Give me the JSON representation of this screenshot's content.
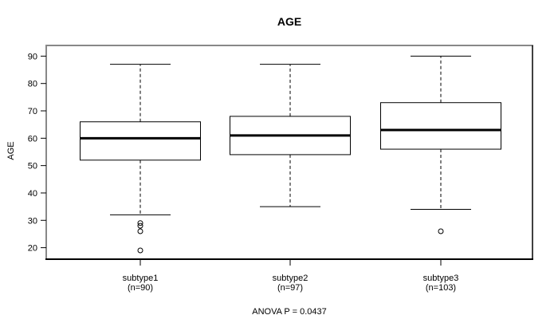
{
  "colors": {
    "ink": "#000000",
    "frame_gray": "#888888",
    "background": "#ffffff",
    "box_fill": "#ffffff"
  },
  "chart_data": {
    "type": "boxplot",
    "title": "AGE",
    "ylabel": "AGE",
    "xlabel": "",
    "annotation": "ANOVA P = 0.0437",
    "ylim": [
      15.8,
      93.9
    ],
    "yticks": [
      20,
      30,
      40,
      50,
      60,
      70,
      80,
      90
    ],
    "grid": false,
    "legend": false,
    "categories": [
      "subtype1",
      "subtype2",
      "subtype3"
    ],
    "groups": [
      {
        "label": "subtype1",
        "n_label": "(n=90)",
        "n": 90,
        "whisker_low": 32,
        "q1": 52,
        "median": 60,
        "q3": 66,
        "whisker_high": 87,
        "outliers": [
          29,
          28,
          26,
          19
        ]
      },
      {
        "label": "subtype2",
        "n_label": "(n=97)",
        "n": 97,
        "whisker_low": 35,
        "q1": 54,
        "median": 61,
        "q3": 68,
        "whisker_high": 87,
        "outliers": []
      },
      {
        "label": "subtype3",
        "n_label": "(n=103)",
        "n": 103,
        "whisker_low": 34,
        "q1": 56,
        "median": 63,
        "q3": 73,
        "whisker_high": 90,
        "outliers": [
          26
        ]
      }
    ]
  }
}
